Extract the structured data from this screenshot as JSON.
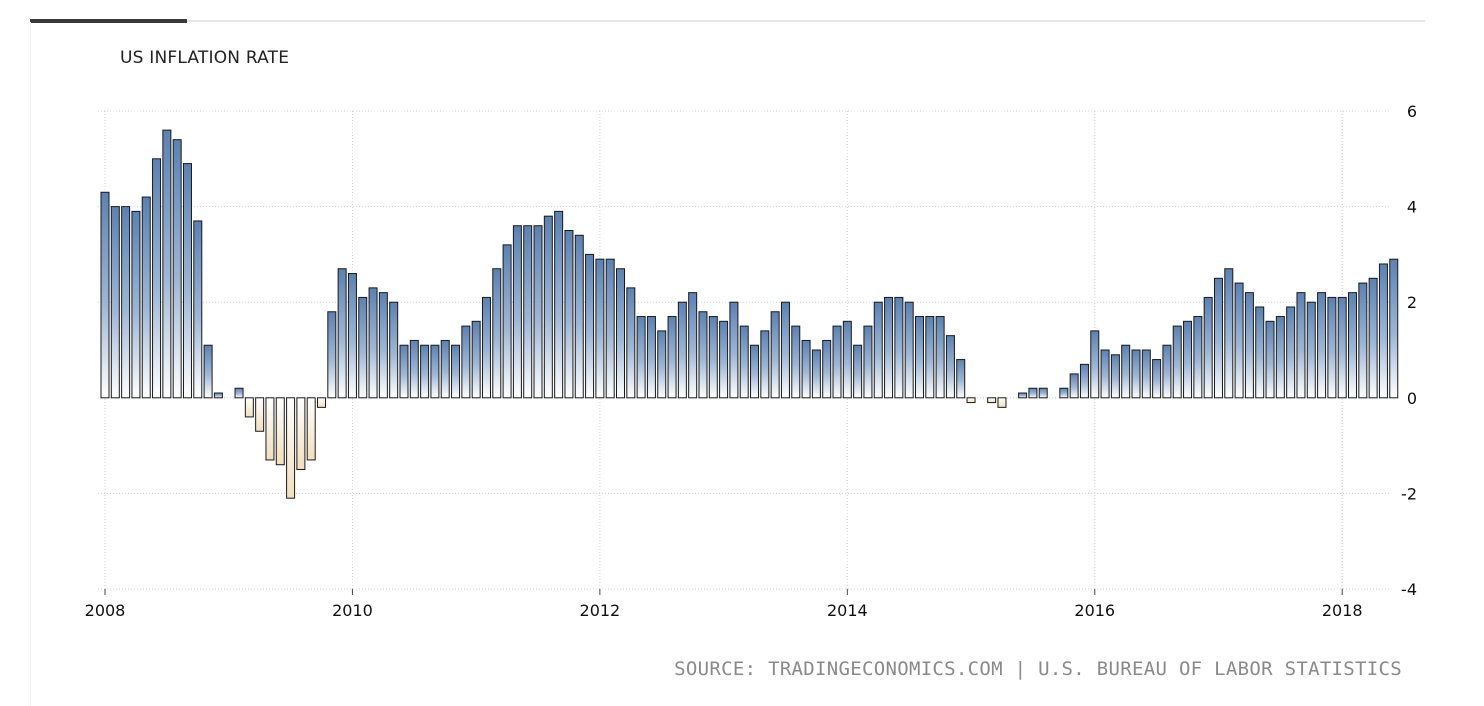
{
  "chart_data": {
    "type": "bar",
    "title": "US INFLATION RATE",
    "xlabel": "",
    "ylabel": "",
    "ylim": [
      -4,
      6
    ],
    "yticks": [
      "6",
      "4",
      "2",
      "0",
      "-2",
      "-4"
    ],
    "xticks": [
      "2008",
      "2010",
      "2012",
      "2014",
      "2016",
      "2018"
    ],
    "x_start": "2008-01",
    "x_end": "2018-06",
    "grid": true,
    "colors": {
      "positive": "#5b82b3",
      "negative": "#f2dfbd",
      "bar_stroke": "#1a1a1a",
      "grid": "#d0d0d0"
    },
    "values": [
      4.3,
      4.0,
      4.0,
      3.9,
      4.2,
      5.0,
      5.6,
      5.4,
      4.9,
      3.7,
      1.1,
      0.1,
      0.0,
      0.2,
      -0.4,
      -0.7,
      -1.3,
      -1.4,
      -2.1,
      -1.5,
      -1.3,
      -0.2,
      1.8,
      2.7,
      2.6,
      2.1,
      2.3,
      2.2,
      2.0,
      1.1,
      1.2,
      1.1,
      1.1,
      1.2,
      1.1,
      1.5,
      1.6,
      2.1,
      2.7,
      3.2,
      3.6,
      3.6,
      3.6,
      3.8,
      3.9,
      3.5,
      3.4,
      3.0,
      2.9,
      2.9,
      2.7,
      2.3,
      1.7,
      1.7,
      1.4,
      1.7,
      2.0,
      2.2,
      1.8,
      1.7,
      1.6,
      2.0,
      1.5,
      1.1,
      1.4,
      1.8,
      2.0,
      1.5,
      1.2,
      1.0,
      1.2,
      1.5,
      1.6,
      1.1,
      1.5,
      2.0,
      2.1,
      2.1,
      2.0,
      1.7,
      1.7,
      1.7,
      1.3,
      0.8,
      -0.1,
      0.0,
      -0.1,
      -0.2,
      0.0,
      0.1,
      0.2,
      0.2,
      0.0,
      0.2,
      0.5,
      0.7,
      1.4,
      1.0,
      0.9,
      1.1,
      1.0,
      1.0,
      0.8,
      1.1,
      1.5,
      1.6,
      1.7,
      2.1,
      2.5,
      2.7,
      2.4,
      2.2,
      1.9,
      1.6,
      1.7,
      1.9,
      2.2,
      2.0,
      2.2,
      2.1,
      2.1,
      2.2,
      2.4,
      2.5,
      2.8,
      2.9
    ]
  },
  "source_text": "SOURCE: TRADINGECONOMICS.COM | U.S. BUREAU OF LABOR STATISTICS"
}
